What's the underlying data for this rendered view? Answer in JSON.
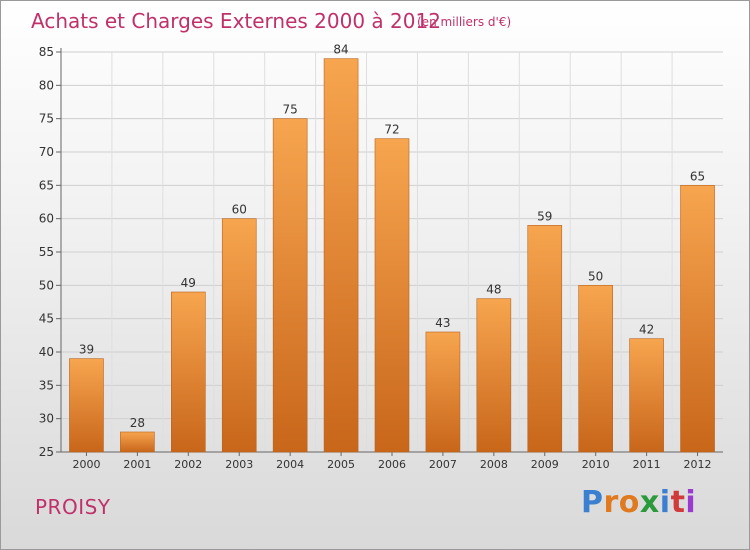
{
  "header": {
    "title": "Achats et Charges Externes 2000 à 2012",
    "subtitle": "(en milliers d'€)"
  },
  "footer": {
    "place": "PROISY",
    "logo_letters": [
      "P",
      "r",
      "o",
      "x",
      "i",
      "t",
      "i"
    ],
    "logo_colors": [
      "#3a7fd0",
      "#e07a1f",
      "#e07a1f",
      "#2a9a3a",
      "#3a7fd0",
      "#d03a3a",
      "#9a3ad0"
    ]
  },
  "colors": {
    "bar_top": "#f7a54f",
    "bar_bottom": "#c8661a",
    "bar_edge": "#b8631c",
    "grid": "#cfcfcf",
    "text": "#333333",
    "accent": "#c0306a"
  },
  "chart_data": {
    "type": "bar",
    "title": "Achats et Charges Externes 2000 à 2012",
    "subtitle": "(en milliers d'€)",
    "categories": [
      "2000",
      "2001",
      "2002",
      "2003",
      "2004",
      "2005",
      "2006",
      "2007",
      "2008",
      "2009",
      "2010",
      "2011",
      "2012"
    ],
    "values": [
      39,
      28,
      49,
      60,
      75,
      84,
      72,
      43,
      48,
      59,
      50,
      42,
      65
    ],
    "xlabel": "",
    "ylabel": "",
    "ylim": [
      25,
      85
    ],
    "yticks": [
      25,
      30,
      35,
      40,
      45,
      50,
      55,
      60,
      65,
      70,
      75,
      80,
      85
    ],
    "grid": true,
    "data_labels": true
  }
}
